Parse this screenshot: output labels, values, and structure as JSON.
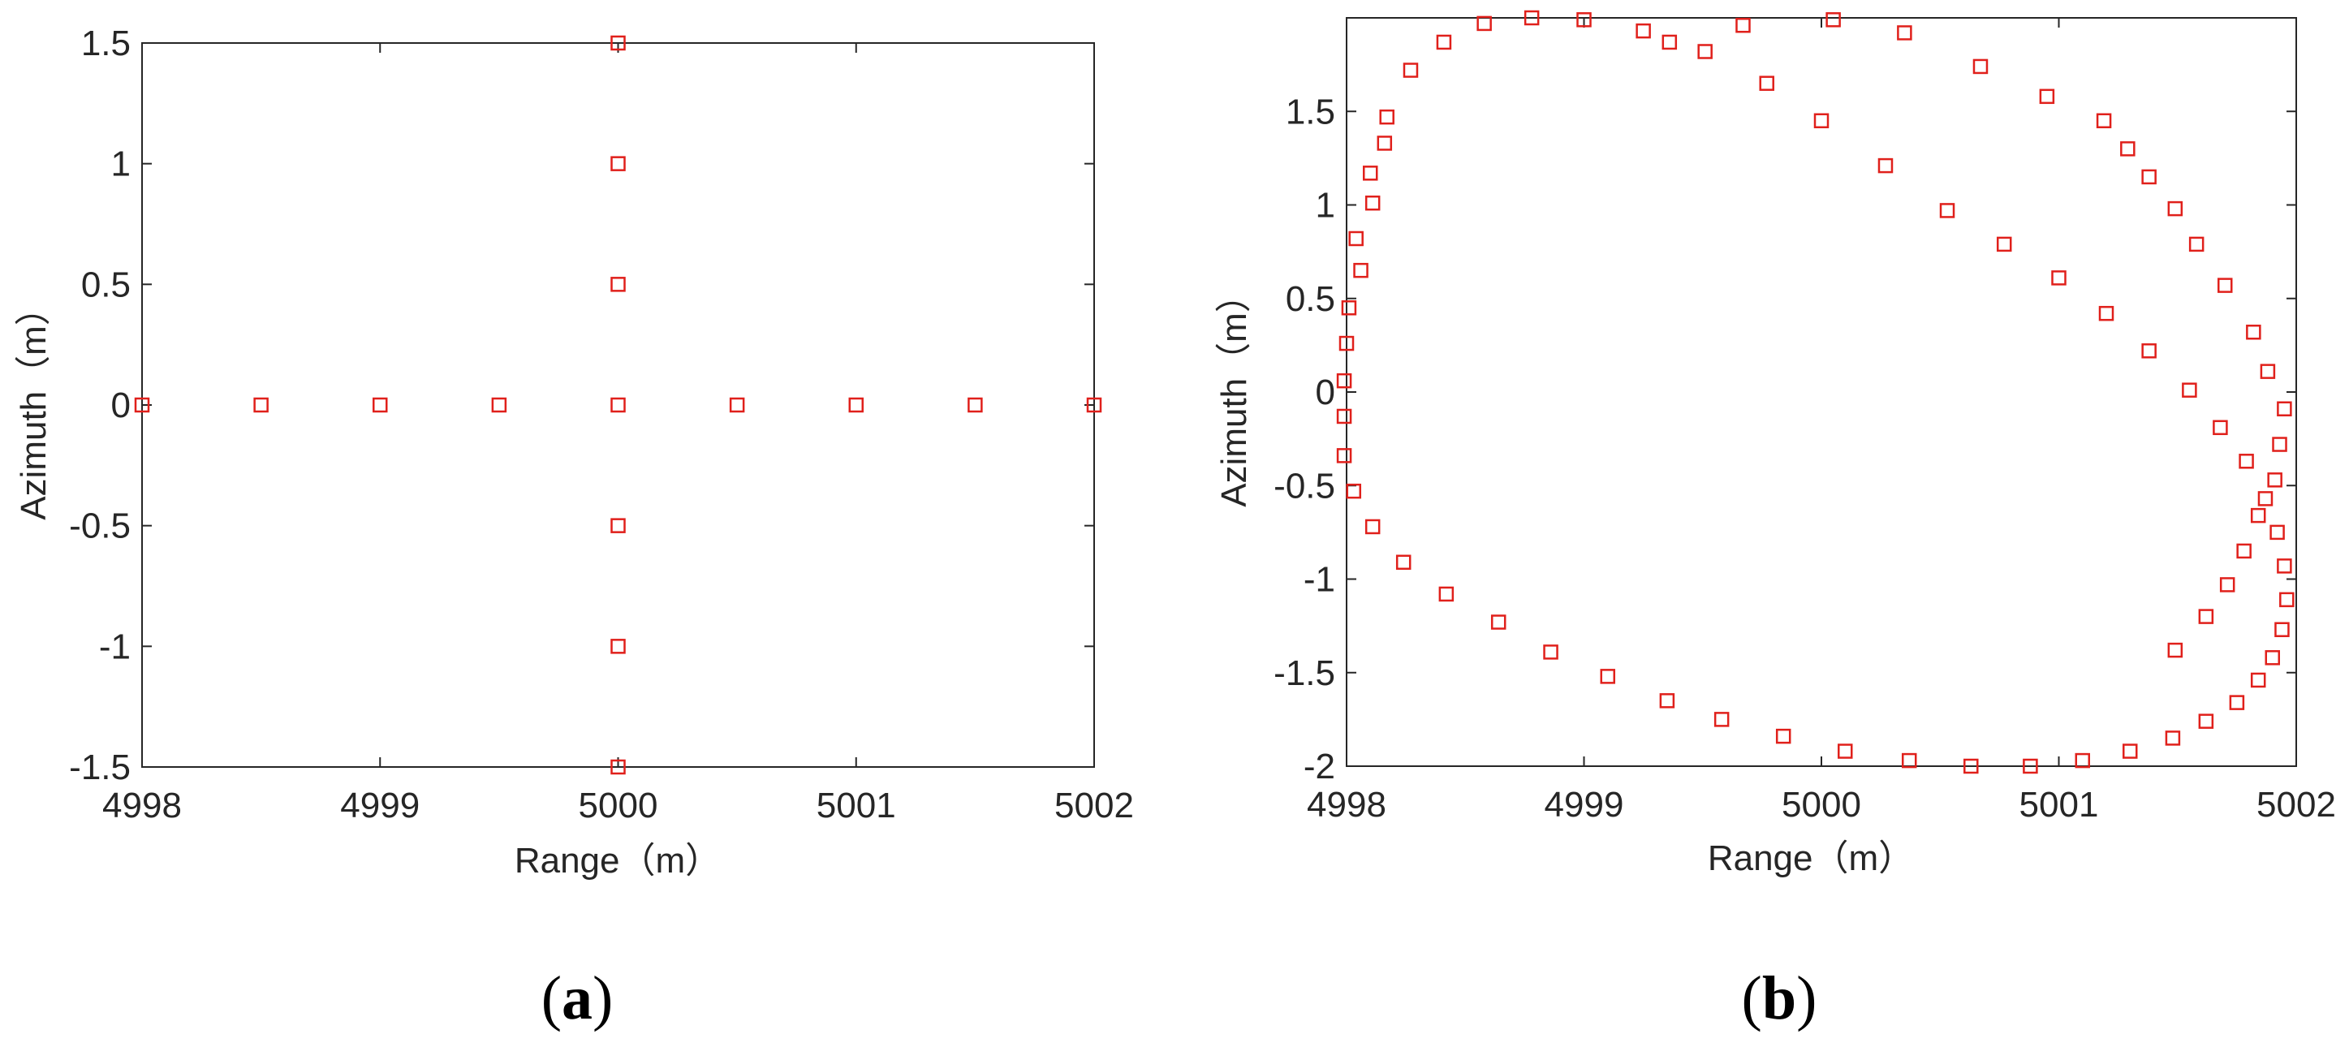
{
  "marker_color": "#e0201b",
  "axis_color": "#262626",
  "chart_data": [
    {
      "type": "scatter",
      "panel_label": "(a)",
      "panel_letter": "a",
      "xlabel": "Range（m）",
      "ylabel": "Azimuth（m）",
      "xlim": [
        4998,
        5002
      ],
      "ylim": [
        -1.5,
        1.5
      ],
      "xticks": [
        4998,
        4999,
        5000,
        5001,
        5002
      ],
      "yticks": [
        -1.5,
        -1,
        -0.5,
        0,
        0.5,
        1,
        1.5
      ],
      "xtick_labels": [
        "4998",
        "4999",
        "5000",
        "5001",
        "5002"
      ],
      "ytick_labels": [
        "-1.5",
        "-1",
        "-0.5",
        "0",
        "0.5",
        "1",
        "1.5"
      ],
      "marker": "square",
      "x": [
        4998,
        4998.5,
        4999,
        4999.5,
        5000,
        5000.5,
        5001,
        5001.5,
        5002,
        5000,
        5000,
        5000,
        5000,
        5000,
        5000
      ],
      "y": [
        0,
        0,
        0,
        0,
        0,
        0,
        0,
        0,
        0,
        1.5,
        1,
        0.5,
        -0.5,
        -1,
        -1.5
      ]
    },
    {
      "type": "scatter",
      "panel_label": "(b)",
      "panel_letter": "b",
      "xlabel": "Range（m）",
      "ylabel": "Azimuth（m）",
      "xlim": [
        4998,
        5002
      ],
      "ylim": [
        -2,
        2
      ],
      "xticks": [
        4998,
        4999,
        5000,
        5001,
        5002
      ],
      "yticks": [
        -2,
        -1.5,
        -1,
        -0.5,
        0,
        0.5,
        1,
        1.5
      ],
      "xtick_labels": [
        "4998",
        "4999",
        "5000",
        "5001",
        "5002"
      ],
      "ytick_labels": [
        "-2",
        "-1.5",
        "-1",
        "-0.5",
        "0",
        "0.5",
        "1",
        "1.5"
      ],
      "marker": "square",
      "x": [
        4997.99,
        4998.01,
        4998.04,
        4998.1,
        4998.17,
        4998.27,
        4998.41,
        4998.58,
        4998.78,
        4999.0,
        4999.25,
        4999.51,
        4999.77,
        5000.0,
        5000.27,
        5000.53,
        5000.77,
        5001.0,
        5001.2,
        5001.38,
        5001.55,
        5001.68,
        5001.79,
        5001.87,
        5001.92,
        5001.95,
        5001.96,
        5001.94,
        5001.9,
        5001.84,
        5001.75,
        5001.62,
        5001.48,
        5001.3,
        5001.1,
        5000.88,
        5000.63,
        5000.37,
        5000.1,
        4999.84,
        4999.58,
        4999.35,
        4999.1,
        4998.86,
        4998.64,
        4998.42,
        4998.24,
        4998.11,
        4998.03,
        4997.99
      ],
      "y": [
        0.06,
        0.45,
        0.82,
        1.17,
        1.47,
        1.72,
        1.87,
        1.97,
        2.0,
        1.99,
        1.93,
        1.82,
        1.65,
        1.45,
        1.21,
        0.97,
        0.79,
        0.61,
        0.42,
        0.22,
        0.01,
        -0.19,
        -0.37,
        -0.57,
        -0.75,
        -0.93,
        -1.11,
        -1.27,
        -1.42,
        -1.54,
        -1.66,
        -1.76,
        -1.85,
        -1.92,
        -1.97,
        -2.0,
        -2.0,
        -1.97,
        -1.92,
        -1.84,
        -1.75,
        -1.65,
        -1.52,
        -1.39,
        -1.23,
        -1.08,
        -0.91,
        -0.72,
        -0.53,
        -0.34
      ],
      "x_extra": [
        4997.99,
        4998.0,
        4998.06,
        4998.11,
        4998.16,
        4999.36,
        4999.67,
        5000.05,
        5000.35,
        5000.67,
        5000.95,
        5001.19,
        5001.29,
        5001.38,
        5001.49,
        5001.58,
        5001.7,
        5001.82,
        5001.88,
        5001.95,
        5001.93,
        5001.91,
        5001.84,
        5001.78,
        5001.71,
        5001.62,
        5001.49
      ],
      "y_extra": [
        -0.13,
        0.26,
        0.65,
        1.01,
        1.33,
        1.87,
        1.96,
        1.99,
        1.92,
        1.74,
        1.58,
        1.45,
        1.3,
        1.15,
        0.98,
        0.79,
        0.57,
        0.32,
        0.11,
        -0.09,
        -0.28,
        -0.47,
        -0.66,
        -0.85,
        -1.03,
        -1.2,
        -1.38
      ]
    }
  ]
}
